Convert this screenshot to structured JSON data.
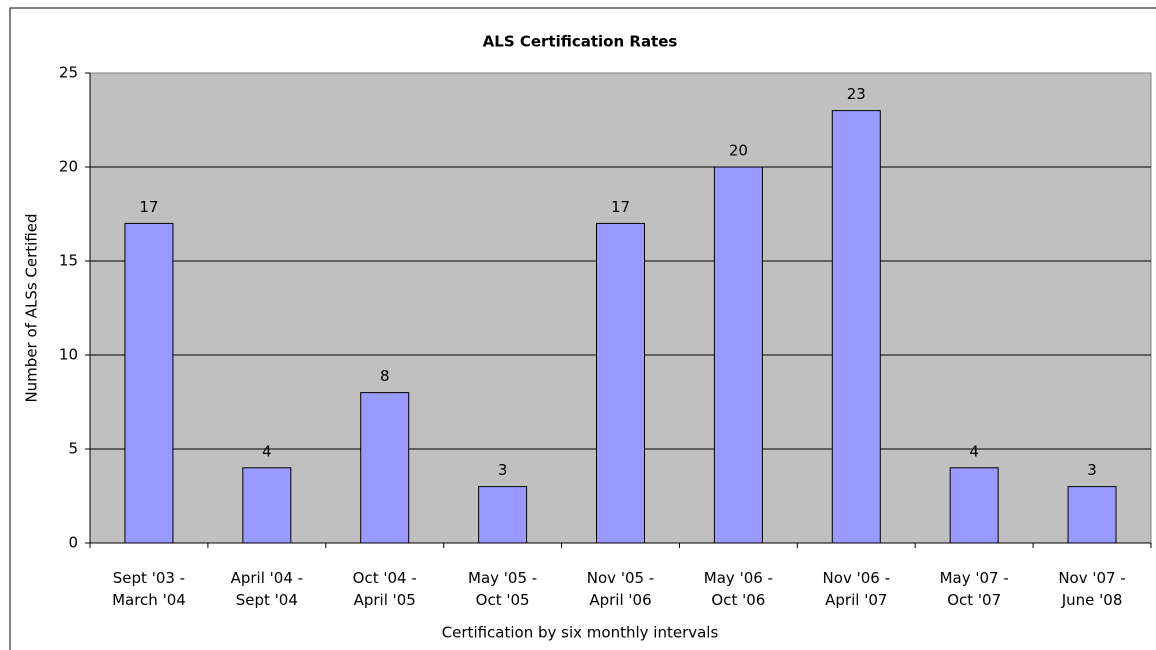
{
  "chart_data": {
    "type": "bar",
    "title": "ALS Certification Rates",
    "x_label": "Certification by six monthly intervals",
    "y_label": "Number of ALSs Certified",
    "categories": [
      "Sept '03 -\nMarch '04",
      "April '04 -\nSept '04",
      "Oct '04 -\nApril '05",
      "May '05 -\nOct '05",
      "Nov '05 -\nApril '06",
      "May '06 -\nOct '06",
      "Nov '06 -\nApril '07",
      "May '07 -\nOct '07",
      "Nov '07 -\nJune '08"
    ],
    "values": [
      17,
      4,
      8,
      3,
      17,
      20,
      23,
      4,
      3
    ],
    "color": "#9999ff",
    "ylim": [
      0,
      25
    ],
    "yticks": [
      0,
      5,
      10,
      15,
      20,
      25
    ],
    "grid": true
  }
}
